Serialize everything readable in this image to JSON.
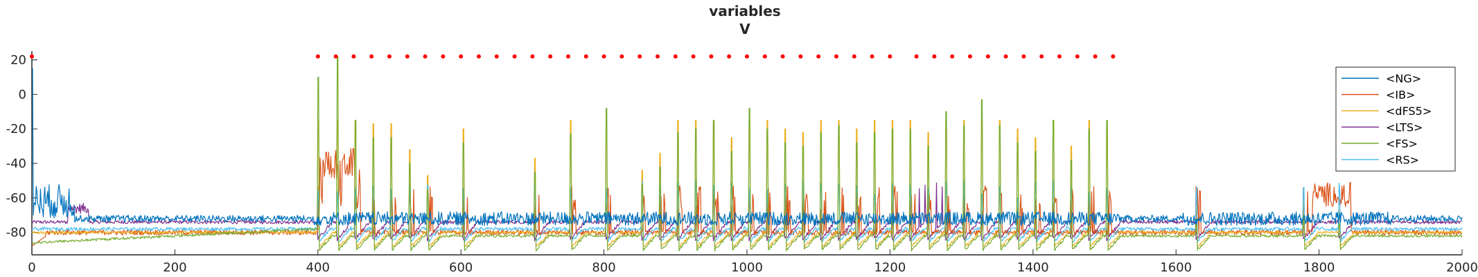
{
  "chart_data": {
    "type": "line",
    "title": "variables",
    "subtitle": "V",
    "xlabel": "",
    "ylabel": "",
    "xlim": [
      0,
      2000
    ],
    "ylim": [
      -93,
      25
    ],
    "xticks": [
      0,
      200,
      400,
      600,
      800,
      1000,
      1200,
      1400,
      1600,
      1800,
      2000
    ],
    "yticks": [
      20,
      0,
      -20,
      -40,
      -60,
      -80
    ],
    "grid": false,
    "legend_position": "top-right",
    "series": [
      {
        "name": "<NG>",
        "color": "#0072BD",
        "baseline": -70,
        "spike_peak": -60
      },
      {
        "name": "<IB>",
        "color": "#D95319",
        "baseline": -76,
        "spike_peak": -45
      },
      {
        "name": "<dFS5>",
        "color": "#EDB120",
        "baseline": -82,
        "spike_peak": -15
      },
      {
        "name": "<LTS>",
        "color": "#7E2F8E",
        "baseline": -72,
        "spike_peak": -55
      },
      {
        "name": "<FS>",
        "color": "#77AC30",
        "baseline": -85,
        "spike_peak": -5
      },
      {
        "name": "<RS>",
        "color": "#4DBEEE",
        "baseline": -80,
        "spike_peak": -30
      }
    ],
    "fs_spike_times": [
      400,
      427,
      452,
      477,
      502,
      528,
      553,
      603,
      703,
      753,
      803,
      853,
      878,
      903,
      928,
      953,
      978,
      1003,
      1028,
      1053,
      1078,
      1103,
      1128,
      1153,
      1178,
      1203,
      1228,
      1253,
      1278,
      1303,
      1328,
      1353,
      1378,
      1403,
      1428,
      1453,
      1478,
      1503,
      1628,
      1778,
      1828
    ],
    "fs_spike_peaks": [
      10,
      22,
      -15,
      -25,
      -25,
      -40,
      -55,
      -28,
      -45,
      -23,
      -8,
      -52,
      -42,
      -22,
      -20,
      -15,
      -33,
      -8,
      -20,
      -28,
      -30,
      -22,
      -18,
      -28,
      -22,
      -20,
      -20,
      -30,
      -10,
      -18,
      -3,
      -18,
      -28,
      -33,
      -15,
      -38,
      -20,
      -15,
      -72,
      -70,
      -75
    ],
    "markers": {
      "color": "#FF0000",
      "y": 22,
      "x": [
        0,
        400,
        425,
        450,
        475,
        500,
        525,
        550,
        575,
        600,
        625,
        650,
        675,
        700,
        725,
        750,
        775,
        800,
        825,
        850,
        875,
        900,
        925,
        950,
        975,
        1000,
        1025,
        1050,
        1075,
        1100,
        1125,
        1150,
        1175,
        1200,
        1237,
        1262,
        1287,
        1312,
        1337,
        1362,
        1387,
        1412,
        1437,
        1462,
        1487,
        1512
      ]
    }
  }
}
